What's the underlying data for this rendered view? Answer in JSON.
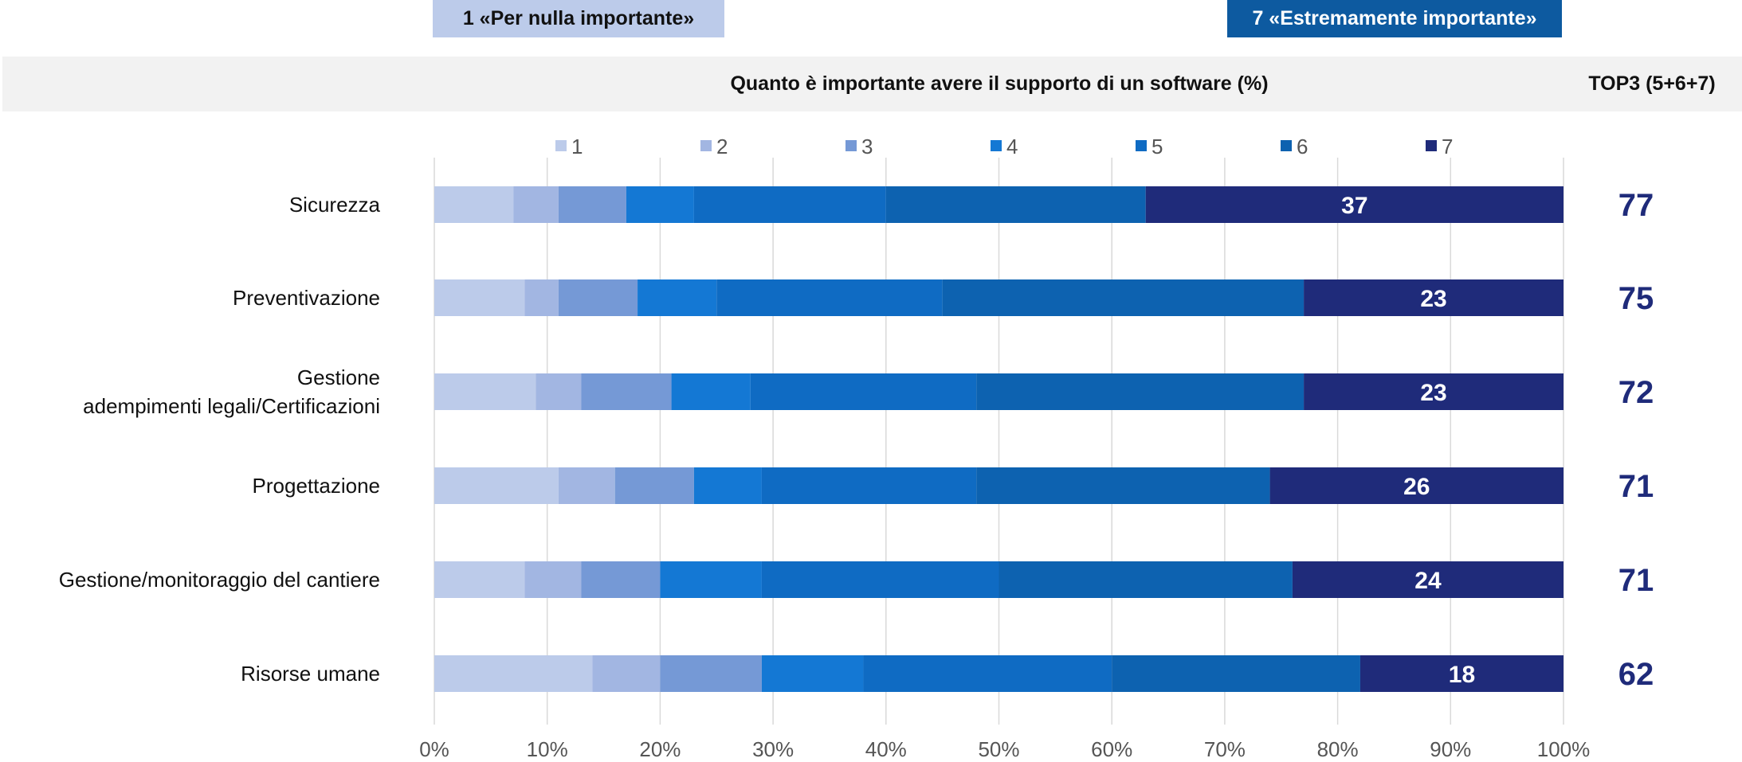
{
  "header": {
    "badge_low": "1 «Per nulla importante»",
    "badge_high": "7 «Estremamente importante»",
    "chart_title": "Quanto è importante avere il supporto di un software (%)",
    "top3_title": "TOP3 (5+6+7)"
  },
  "colors": {
    "scale": [
      "#bccbea",
      "#a2b6e2",
      "#7599d6",
      "#1478d4",
      "#0f6bc3",
      "#0d62b0",
      "#1f2b7a"
    ],
    "top3_text": "#1f2b7a",
    "badge_high_bg": "#0d5aa0",
    "header_band": "#f2f2f2",
    "grid": "#d9d9d9"
  },
  "chart_data": {
    "type": "bar",
    "orientation": "horizontal",
    "stacked": true,
    "percent": true,
    "categories": [
      "Sicurezza",
      "Preventivazione",
      "Gestione\nadempimenti legali/Certificazioni",
      "Progettazione",
      "Gestione/monitoraggio del cantiere",
      "Risorse umane"
    ],
    "series": [
      {
        "name": "1",
        "values": [
          7,
          8,
          9,
          11,
          8,
          14
        ]
      },
      {
        "name": "2",
        "values": [
          4,
          3,
          4,
          5,
          5,
          6
        ]
      },
      {
        "name": "3",
        "values": [
          6,
          7,
          8,
          7,
          7,
          9
        ]
      },
      {
        "name": "4",
        "values": [
          6,
          7,
          7,
          6,
          9,
          9
        ]
      },
      {
        "name": "5",
        "values": [
          17,
          20,
          20,
          19,
          21,
          22
        ]
      },
      {
        "name": "6",
        "values": [
          23,
          32,
          29,
          26,
          26,
          22
        ]
      },
      {
        "name": "7",
        "values": [
          37,
          23,
          23,
          26,
          24,
          18
        ]
      }
    ],
    "data_labels_series": "7",
    "top3": [
      77,
      75,
      72,
      71,
      71,
      62
    ],
    "xlim": [
      0,
      100
    ],
    "xticks": [
      "0%",
      "10%",
      "20%",
      "30%",
      "40%",
      "50%",
      "60%",
      "70%",
      "80%",
      "90%",
      "100%"
    ],
    "grid": true,
    "legend_position": "top"
  }
}
